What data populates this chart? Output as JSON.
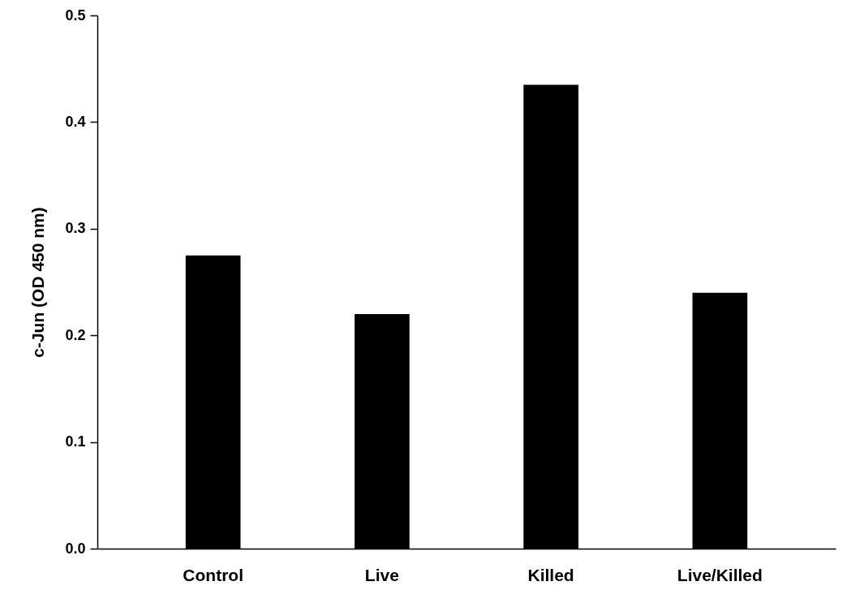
{
  "chart_data": {
    "type": "bar",
    "ylabel": "c-Jun (OD 450 nm)",
    "categories": [
      "Control",
      "Live",
      "Killed",
      "Live/Killed"
    ],
    "values": [
      0.275,
      0.22,
      0.435,
      0.24
    ],
    "color": "#000000",
    "ylim": [
      0,
      0.5
    ],
    "yticks": [
      {
        "value": 0,
        "label": "0.0"
      },
      {
        "value": 0.1,
        "label": "0.1"
      },
      {
        "value": 0.2,
        "label": "0.2"
      },
      {
        "value": 0.3,
        "label": "0.3"
      },
      {
        "value": 0.4,
        "label": "0.4"
      },
      {
        "value": 0.5,
        "label": "0.5"
      }
    ],
    "grid": false
  }
}
